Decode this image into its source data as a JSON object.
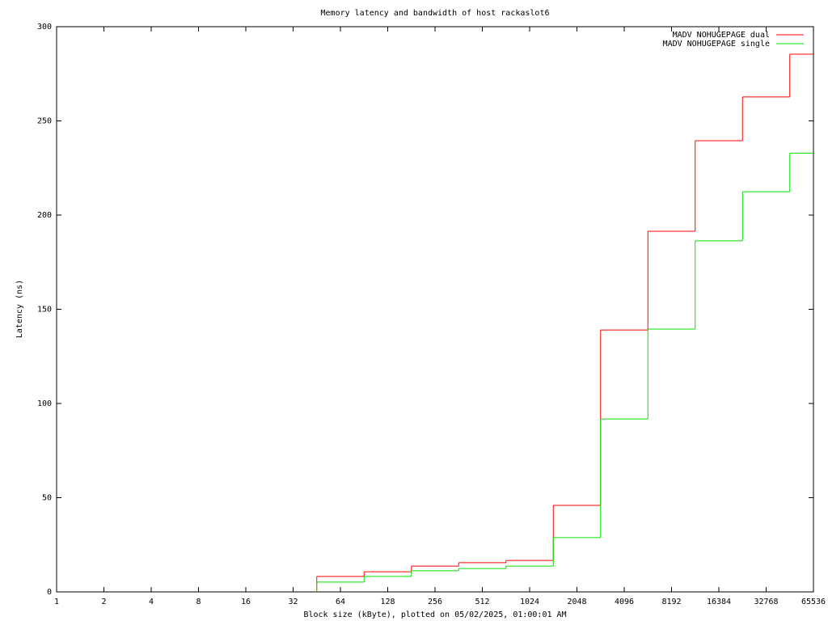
{
  "chart_data": {
    "type": "step",
    "title": "Memory latency and bandwidth of host rackaslot6",
    "x_label": "Block size (kByte), plotted on 05/02/2025, 01:00:01 AM",
    "y_label": "Latency (ns)",
    "x": [
      64,
      128,
      256,
      512,
      1024,
      2048,
      4096,
      8192,
      16384,
      32768,
      65536
    ],
    "series": [
      {
        "name": "MADV NOHUGEPAGE dual",
        "color": "#ff0000",
        "values": [
          8.2,
          10.7,
          13.7,
          15.5,
          16.7,
          45.9,
          139,
          191.4,
          239.5,
          262.7,
          285.4
        ]
      },
      {
        "name": "MADV NOHUGEPAGE single",
        "color": "#00e000",
        "values": [
          5.2,
          8.2,
          11.2,
          12.4,
          13.7,
          28.8,
          91.8,
          139.5,
          186.3,
          212.4,
          232.9
        ]
      }
    ],
    "xlim": [
      1,
      65536
    ],
    "xticks": [
      1,
      2,
      4,
      8,
      16,
      32,
      64,
      128,
      256,
      512,
      1024,
      2048,
      4096,
      8192,
      16384,
      32768,
      65536
    ],
    "xscale": "log",
    "ylim": [
      0,
      300
    ],
    "yticks": [
      0,
      50,
      100,
      150,
      200,
      250,
      300
    ],
    "legend": "top-right"
  }
}
